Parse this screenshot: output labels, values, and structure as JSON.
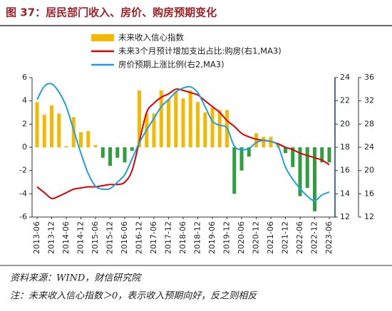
{
  "chart_data": {
    "type": "bar-line",
    "title": "图 37：居民部门收入、房价、购房预期变化",
    "source": "资料来源：WIND，财信研究院",
    "note": "注：未来收入信心指数＞0，表示收入预期向好，反之则相反",
    "categories": [
      "2013-06",
      null,
      "2013-12",
      null,
      "2014-06",
      null,
      "2014-12",
      null,
      "2015-06",
      null,
      "2015-12",
      null,
      "2016-06",
      null,
      "2016-12",
      null,
      "2017-06",
      null,
      "2017-12",
      null,
      "2018-06",
      null,
      "2018-12",
      null,
      "2019-06",
      null,
      "2019-12",
      null,
      "2020-06",
      null,
      "2020-12",
      null,
      "2021-06",
      null,
      "2021-12",
      null,
      "2022-06",
      null,
      "2022-12",
      null,
      "2023-06"
    ],
    "series": [
      {
        "name": "未来收入信心指数",
        "color": "#f5b800",
        "negative_color": "#2e9e3e",
        "kind": "bar",
        "axis": "y",
        "values": [
          3.9,
          2.8,
          3.6,
          2.9,
          0.1,
          2.6,
          1.3,
          1.4,
          0.2,
          -0.9,
          -1.6,
          -0.9,
          -1.3,
          -0.3,
          4.9,
          2.9,
          2.9,
          4.9,
          4.1,
          4.8,
          4.2,
          4.9,
          3.9,
          3.0,
          3.4,
          3.2,
          3.2,
          -4.0,
          -2.0,
          -0.8,
          1.2,
          0.9,
          0.9,
          0.3,
          -0.5,
          -1.7,
          -4.2,
          -3.5,
          -5.5,
          -1.3,
          -1.3
        ]
      },
      {
        "name": "未来3个月预计增加支出占比:购房(右1,MA3)",
        "color": "#e00000",
        "kind": "line",
        "axis": "y2",
        "values": [
          14.6,
          14.1,
          13.6,
          13.8,
          14.1,
          14.4,
          14.5,
          14.6,
          14.6,
          14.7,
          14.8,
          14.8,
          15.0,
          16.0,
          18.5,
          21.0,
          21.8,
          22.3,
          22.6,
          23.0,
          22.9,
          22.7,
          22.5,
          22.0,
          21.5,
          21.0,
          20.3,
          19.8,
          19.2,
          18.9,
          18.7,
          18.6,
          18.5,
          18.3,
          18.0,
          17.8,
          17.5,
          17.3,
          17.1,
          16.9,
          16.5
        ]
      },
      {
        "name": "房价预期上涨比例(右2,MA3)",
        "color": "#1ea0e0",
        "kind": "line",
        "axis": "y3",
        "values": [
          32.2,
          34.5,
          34.9,
          33.5,
          31.0,
          27.0,
          23.0,
          19.5,
          17.3,
          16.8,
          16.9,
          18.0,
          19.3,
          22.0,
          24.8,
          27.0,
          29.0,
          31.0,
          32.2,
          33.5,
          34.2,
          34.4,
          33.4,
          31.0,
          28.5,
          27.8,
          27.3,
          24.2,
          23.6,
          23.8,
          24.8,
          25.2,
          25.0,
          24.2,
          20.6,
          18.5,
          16.9,
          15.6,
          14.8,
          15.8,
          16.3
        ]
      }
    ],
    "ylim": [
      -6,
      6
    ],
    "yticks": [
      -6,
      -4,
      -2,
      0,
      2,
      4,
      6
    ],
    "y2lim": [
      12,
      24
    ],
    "y2ticks": [
      12,
      14,
      16,
      18,
      20,
      22,
      24
    ],
    "y3lim": [
      12,
      36
    ],
    "y3ticks": [
      12,
      16,
      20,
      24,
      28,
      32,
      36
    ]
  }
}
